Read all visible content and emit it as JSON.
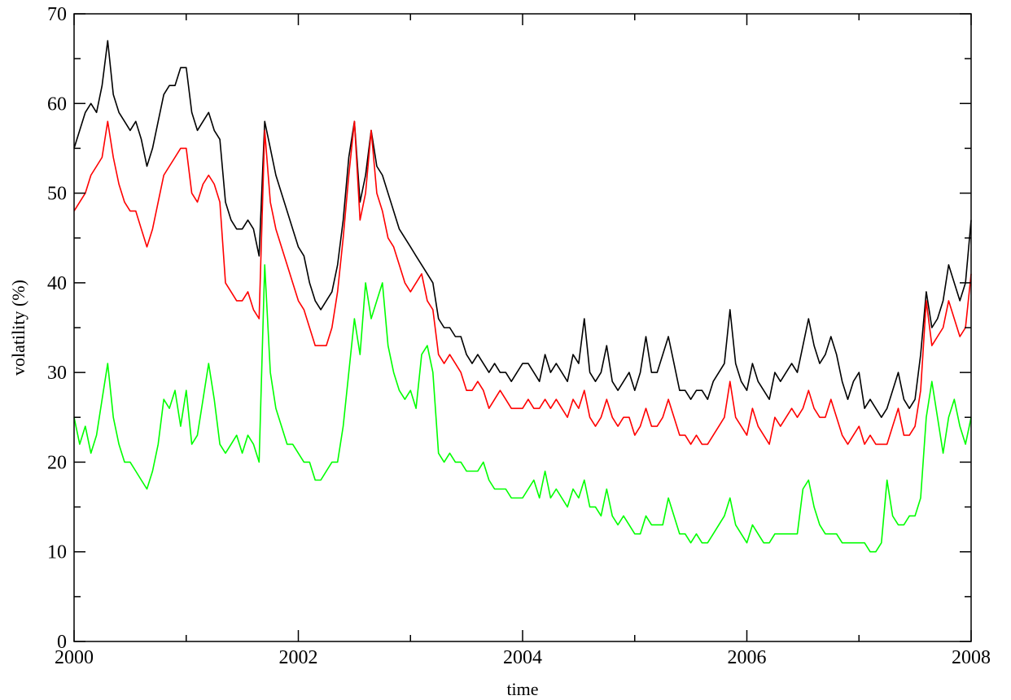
{
  "chart_data": {
    "type": "line",
    "title": "",
    "xlabel": "time",
    "ylabel": "volatility (%)",
    "xlim": [
      2000,
      2008
    ],
    "ylim": [
      0,
      70
    ],
    "xticks": [
      2000,
      2002,
      2004,
      2006,
      2008
    ],
    "yticks": [
      0,
      10,
      20,
      30,
      40,
      50,
      60,
      70
    ],
    "x_minor_step": 1,
    "y_minor_step": 5,
    "grid": false,
    "legend": "none",
    "series": [
      {
        "color": "#000000",
        "x": [
          2000.0,
          2000.05,
          2000.1,
          2000.15,
          2000.2,
          2000.25,
          2000.3,
          2000.35,
          2000.4,
          2000.45,
          2000.5,
          2000.55,
          2000.6,
          2000.65,
          2000.7,
          2000.75,
          2000.8,
          2000.85,
          2000.9,
          2000.95,
          2001.0,
          2001.05,
          2001.1,
          2001.15,
          2001.2,
          2001.25,
          2001.3,
          2001.35,
          2001.4,
          2001.45,
          2001.5,
          2001.55,
          2001.6,
          2001.65,
          2001.7,
          2001.75,
          2001.8,
          2001.85,
          2001.9,
          2001.95,
          2002.0,
          2002.05,
          2002.1,
          2002.15,
          2002.2,
          2002.25,
          2002.3,
          2002.35,
          2002.4,
          2002.45,
          2002.5,
          2002.55,
          2002.6,
          2002.65,
          2002.7,
          2002.75,
          2002.8,
          2002.85,
          2002.9,
          2002.95,
          2003.0,
          2003.05,
          2003.1,
          2003.15,
          2003.2,
          2003.25,
          2003.3,
          2003.35,
          2003.4,
          2003.45,
          2003.5,
          2003.55,
          2003.6,
          2003.65,
          2003.7,
          2003.75,
          2003.8,
          2003.85,
          2003.9,
          2003.95,
          2004.0,
          2004.05,
          2004.1,
          2004.15,
          2004.2,
          2004.25,
          2004.3,
          2004.35,
          2004.4,
          2004.45,
          2004.5,
          2004.55,
          2004.6,
          2004.65,
          2004.7,
          2004.75,
          2004.8,
          2004.85,
          2004.9,
          2004.95,
          2005.0,
          2005.05,
          2005.1,
          2005.15,
          2005.2,
          2005.25,
          2005.3,
          2005.35,
          2005.4,
          2005.45,
          2005.5,
          2005.55,
          2005.6,
          2005.65,
          2005.7,
          2005.75,
          2005.8,
          2005.85,
          2005.9,
          2005.95,
          2006.0,
          2006.05,
          2006.1,
          2006.15,
          2006.2,
          2006.25,
          2006.3,
          2006.35,
          2006.4,
          2006.45,
          2006.5,
          2006.55,
          2006.6,
          2006.65,
          2006.7,
          2006.75,
          2006.8,
          2006.85,
          2006.9,
          2006.95,
          2007.0,
          2007.05,
          2007.1,
          2007.15,
          2007.2,
          2007.25,
          2007.3,
          2007.35,
          2007.4,
          2007.45,
          2007.5,
          2007.55,
          2007.6,
          2007.65,
          2007.7,
          2007.75,
          2007.8,
          2007.85,
          2007.9,
          2007.95,
          2008.0
        ],
        "values": [
          55,
          57,
          59,
          60,
          59,
          62,
          67,
          61,
          59,
          58,
          57,
          58,
          56,
          53,
          55,
          58,
          61,
          62,
          62,
          64,
          64,
          59,
          57,
          58,
          59,
          57,
          56,
          49,
          47,
          46,
          46,
          47,
          46,
          43,
          58,
          55,
          52,
          50,
          48,
          46,
          44,
          43,
          40,
          38,
          37,
          38,
          39,
          42,
          47,
          54,
          58,
          49,
          52,
          57,
          53,
          52,
          50,
          48,
          46,
          45,
          44,
          43,
          42,
          41,
          40,
          36,
          35,
          35,
          34,
          34,
          32,
          31,
          32,
          31,
          30,
          31,
          30,
          30,
          29,
          30,
          31,
          31,
          30,
          29,
          32,
          30,
          31,
          30,
          29,
          32,
          31,
          36,
          30,
          29,
          30,
          33,
          29,
          28,
          29,
          30,
          28,
          30,
          34,
          30,
          30,
          32,
          34,
          31,
          28,
          28,
          27,
          28,
          28,
          27,
          29,
          30,
          31,
          37,
          31,
          29,
          28,
          31,
          29,
          28,
          27,
          30,
          29,
          30,
          31,
          30,
          33,
          36,
          33,
          31,
          32,
          34,
          32,
          29,
          27,
          29,
          30,
          26,
          27,
          26,
          25,
          26,
          28,
          30,
          27,
          26,
          27,
          32,
          39,
          35,
          36,
          38,
          42,
          40,
          38,
          40,
          47
        ]
      },
      {
        "color": "#ff0000",
        "x": [
          2000.0,
          2000.05,
          2000.1,
          2000.15,
          2000.2,
          2000.25,
          2000.3,
          2000.35,
          2000.4,
          2000.45,
          2000.5,
          2000.55,
          2000.6,
          2000.65,
          2000.7,
          2000.75,
          2000.8,
          2000.85,
          2000.9,
          2000.95,
          2001.0,
          2001.05,
          2001.1,
          2001.15,
          2001.2,
          2001.25,
          2001.3,
          2001.35,
          2001.4,
          2001.45,
          2001.5,
          2001.55,
          2001.6,
          2001.65,
          2001.7,
          2001.75,
          2001.8,
          2001.85,
          2001.9,
          2001.95,
          2002.0,
          2002.05,
          2002.1,
          2002.15,
          2002.2,
          2002.25,
          2002.3,
          2002.35,
          2002.4,
          2002.45,
          2002.5,
          2002.55,
          2002.6,
          2002.65,
          2002.7,
          2002.75,
          2002.8,
          2002.85,
          2002.9,
          2002.95,
          2003.0,
          2003.05,
          2003.1,
          2003.15,
          2003.2,
          2003.25,
          2003.3,
          2003.35,
          2003.4,
          2003.45,
          2003.5,
          2003.55,
          2003.6,
          2003.65,
          2003.7,
          2003.75,
          2003.8,
          2003.85,
          2003.9,
          2003.95,
          2004.0,
          2004.05,
          2004.1,
          2004.15,
          2004.2,
          2004.25,
          2004.3,
          2004.35,
          2004.4,
          2004.45,
          2004.5,
          2004.55,
          2004.6,
          2004.65,
          2004.7,
          2004.75,
          2004.8,
          2004.85,
          2004.9,
          2004.95,
          2005.0,
          2005.05,
          2005.1,
          2005.15,
          2005.2,
          2005.25,
          2005.3,
          2005.35,
          2005.4,
          2005.45,
          2005.5,
          2005.55,
          2005.6,
          2005.65,
          2005.7,
          2005.75,
          2005.8,
          2005.85,
          2005.9,
          2005.95,
          2006.0,
          2006.05,
          2006.1,
          2006.15,
          2006.2,
          2006.25,
          2006.3,
          2006.35,
          2006.4,
          2006.45,
          2006.5,
          2006.55,
          2006.6,
          2006.65,
          2006.7,
          2006.75,
          2006.8,
          2006.85,
          2006.9,
          2006.95,
          2007.0,
          2007.05,
          2007.1,
          2007.15,
          2007.2,
          2007.25,
          2007.3,
          2007.35,
          2007.4,
          2007.45,
          2007.5,
          2007.55,
          2007.6,
          2007.65,
          2007.7,
          2007.75,
          2007.8,
          2007.85,
          2007.9,
          2007.95,
          2008.0
        ],
        "values": [
          48,
          49,
          50,
          52,
          53,
          54,
          58,
          54,
          51,
          49,
          48,
          48,
          46,
          44,
          46,
          49,
          52,
          53,
          54,
          55,
          55,
          50,
          49,
          51,
          52,
          51,
          49,
          40,
          39,
          38,
          38,
          39,
          37,
          36,
          57,
          49,
          46,
          44,
          42,
          40,
          38,
          37,
          35,
          33,
          33,
          33,
          35,
          39,
          45,
          52,
          58,
          47,
          50,
          57,
          50,
          48,
          45,
          44,
          42,
          40,
          39,
          40,
          41,
          38,
          37,
          32,
          31,
          32,
          31,
          30,
          28,
          28,
          29,
          28,
          26,
          27,
          28,
          27,
          26,
          26,
          26,
          27,
          26,
          26,
          27,
          26,
          27,
          26,
          25,
          27,
          26,
          28,
          25,
          24,
          25,
          27,
          25,
          24,
          25,
          25,
          23,
          24,
          26,
          24,
          24,
          25,
          27,
          25,
          23,
          23,
          22,
          23,
          22,
          22,
          23,
          24,
          25,
          29,
          25,
          24,
          23,
          26,
          24,
          23,
          22,
          25,
          24,
          25,
          26,
          25,
          26,
          28,
          26,
          25,
          25,
          27,
          25,
          23,
          22,
          23,
          24,
          22,
          23,
          22,
          22,
          22,
          24,
          26,
          23,
          23,
          24,
          28,
          38,
          33,
          34,
          35,
          38,
          36,
          34,
          35,
          41
        ]
      },
      {
        "color": "#00ff00",
        "x": [
          2000.0,
          2000.05,
          2000.1,
          2000.15,
          2000.2,
          2000.25,
          2000.3,
          2000.35,
          2000.4,
          2000.45,
          2000.5,
          2000.55,
          2000.6,
          2000.65,
          2000.7,
          2000.75,
          2000.8,
          2000.85,
          2000.9,
          2000.95,
          2001.0,
          2001.05,
          2001.1,
          2001.15,
          2001.2,
          2001.25,
          2001.3,
          2001.35,
          2001.4,
          2001.45,
          2001.5,
          2001.55,
          2001.6,
          2001.65,
          2001.7,
          2001.75,
          2001.8,
          2001.85,
          2001.9,
          2001.95,
          2002.0,
          2002.05,
          2002.1,
          2002.15,
          2002.2,
          2002.25,
          2002.3,
          2002.35,
          2002.4,
          2002.45,
          2002.5,
          2002.55,
          2002.6,
          2002.65,
          2002.7,
          2002.75,
          2002.8,
          2002.85,
          2002.9,
          2002.95,
          2003.0,
          2003.05,
          2003.1,
          2003.15,
          2003.2,
          2003.25,
          2003.3,
          2003.35,
          2003.4,
          2003.45,
          2003.5,
          2003.55,
          2003.6,
          2003.65,
          2003.7,
          2003.75,
          2003.8,
          2003.85,
          2003.9,
          2003.95,
          2004.0,
          2004.05,
          2004.1,
          2004.15,
          2004.2,
          2004.25,
          2004.3,
          2004.35,
          2004.4,
          2004.45,
          2004.5,
          2004.55,
          2004.6,
          2004.65,
          2004.7,
          2004.75,
          2004.8,
          2004.85,
          2004.9,
          2004.95,
          2005.0,
          2005.05,
          2005.1,
          2005.15,
          2005.2,
          2005.25,
          2005.3,
          2005.35,
          2005.4,
          2005.45,
          2005.5,
          2005.55,
          2005.6,
          2005.65,
          2005.7,
          2005.75,
          2005.8,
          2005.85,
          2005.9,
          2005.95,
          2006.0,
          2006.05,
          2006.1,
          2006.15,
          2006.2,
          2006.25,
          2006.3,
          2006.35,
          2006.4,
          2006.45,
          2006.5,
          2006.55,
          2006.6,
          2006.65,
          2006.7,
          2006.75,
          2006.8,
          2006.85,
          2006.9,
          2006.95,
          2007.0,
          2007.05,
          2007.1,
          2007.15,
          2007.2,
          2007.25,
          2007.3,
          2007.35,
          2007.4,
          2007.45,
          2007.5,
          2007.55,
          2007.6,
          2007.65,
          2007.7,
          2007.75,
          2007.8,
          2007.85,
          2007.9,
          2007.95,
          2008.0
        ],
        "values": [
          25,
          22,
          24,
          21,
          23,
          27,
          31,
          25,
          22,
          20,
          20,
          19,
          18,
          17,
          19,
          22,
          27,
          26,
          28,
          24,
          28,
          22,
          23,
          27,
          31,
          27,
          22,
          21,
          22,
          23,
          21,
          23,
          22,
          20,
          42,
          30,
          26,
          24,
          22,
          22,
          21,
          20,
          20,
          18,
          18,
          19,
          20,
          20,
          24,
          30,
          36,
          32,
          40,
          36,
          38,
          40,
          33,
          30,
          28,
          27,
          28,
          26,
          32,
          33,
          30,
          21,
          20,
          21,
          20,
          20,
          19,
          19,
          19,
          20,
          18,
          17,
          17,
          17,
          16,
          16,
          16,
          17,
          18,
          16,
          19,
          16,
          17,
          16,
          15,
          17,
          16,
          18,
          15,
          15,
          14,
          17,
          14,
          13,
          14,
          13,
          12,
          12,
          14,
          13,
          13,
          13,
          16,
          14,
          12,
          12,
          11,
          12,
          11,
          11,
          12,
          13,
          14,
          16,
          13,
          12,
          11,
          13,
          12,
          11,
          11,
          12,
          12,
          12,
          12,
          12,
          17,
          18,
          15,
          13,
          12,
          12,
          12,
          11,
          11,
          11,
          11,
          11,
          10,
          10,
          11,
          18,
          14,
          13,
          13,
          14,
          14,
          16,
          25,
          29,
          25,
          21,
          25,
          27,
          24,
          22,
          25
        ]
      }
    ]
  }
}
